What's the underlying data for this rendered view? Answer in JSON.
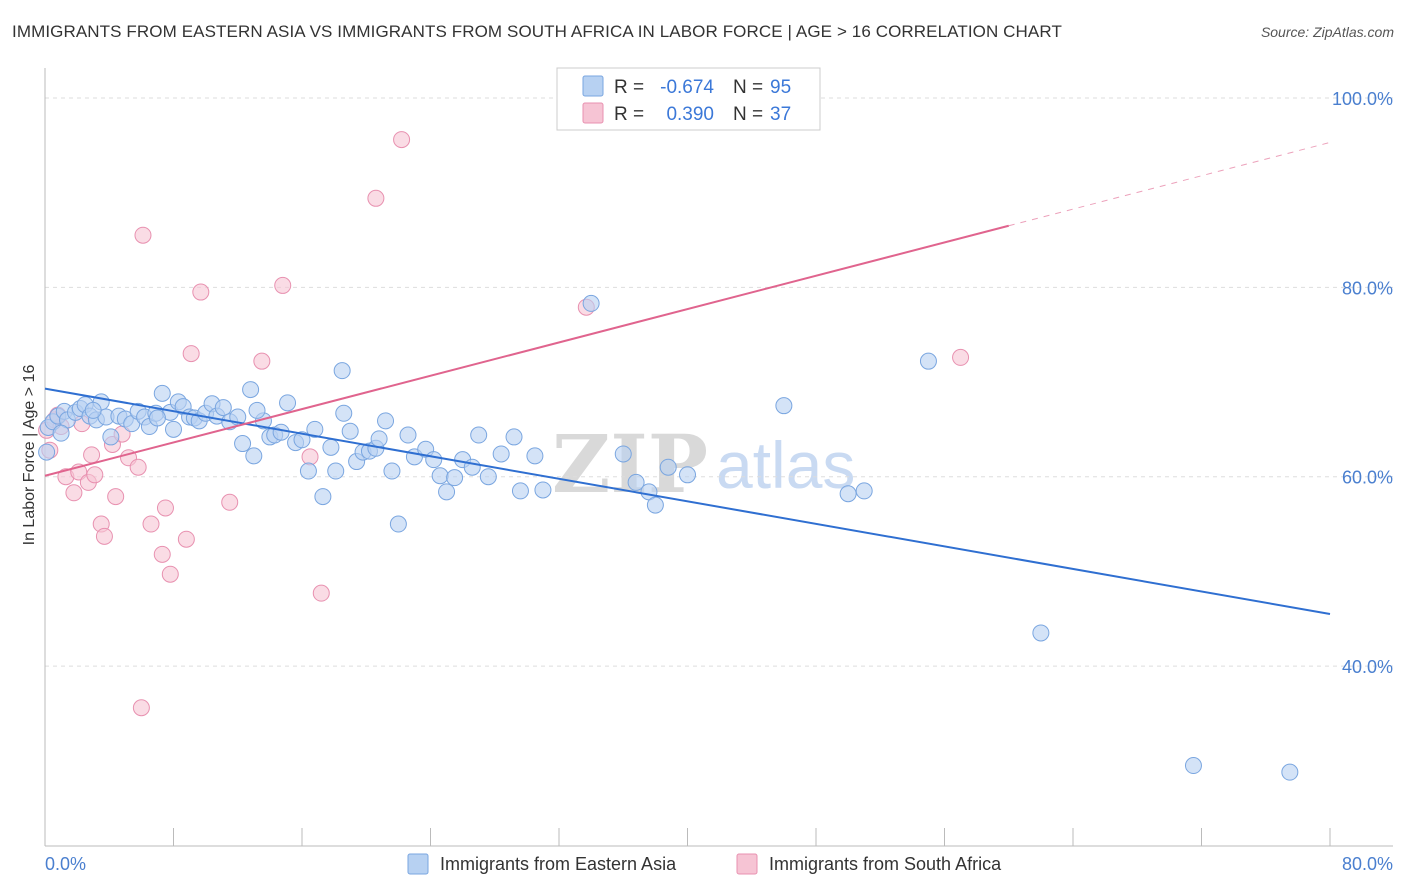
{
  "header": {
    "title": "IMMIGRANTS FROM EASTERN ASIA VS IMMIGRANTS FROM SOUTH AFRICA IN LABOR FORCE | AGE > 16 CORRELATION CHART",
    "source": "Source: ZipAtlas.com"
  },
  "watermark": {
    "zip": "ZIP",
    "atlas": "atlas"
  },
  "legend": {
    "row1": {
      "r_label": "R =",
      "r_value": "-0.674",
      "n_label": "N =",
      "n_value": "95"
    },
    "row2": {
      "r_label": "R =",
      "r_value": "0.390",
      "n_label": "N =",
      "n_value": "37"
    }
  },
  "bottom_legend": {
    "series1": "Immigrants from Eastern Asia",
    "series2": "Immigrants from South Africa"
  },
  "colors": {
    "series1_fill": "#b7d1f2",
    "series1_stroke": "#7aa6e0",
    "series1_line": "#2f6fd1",
    "series2_fill": "#f6c4d4",
    "series2_stroke": "#e891b0",
    "series2_line": "#e0648e",
    "grid": "#dddddd"
  },
  "chart_data": {
    "type": "scatter",
    "title": "IMMIGRANTS FROM EASTERN ASIA VS IMMIGRANTS FROM SOUTH AFRICA IN LABOR FORCE | AGE > 16 CORRELATION CHART",
    "xlabel": "",
    "ylabel": "In Labor Force | Age > 16",
    "xlim": [
      0,
      80
    ],
    "ylim": [
      21,
      102
    ],
    "x_tick_labels": [
      "0.0%",
      "80.0%"
    ],
    "y_ticks": [
      40,
      60,
      80,
      100
    ],
    "y_tick_labels": [
      "40.0%",
      "60.0%",
      "80.0%",
      "100.0%"
    ],
    "grid": "horizontal dashed",
    "legend_position": "top-center",
    "series": [
      {
        "name": "Immigrants from Eastern Asia",
        "r": -0.674,
        "n": 95,
        "trend": {
          "x": [
            0,
            80
          ],
          "y": [
            69.3,
            45.5
          ]
        },
        "points": [
          [
            0.1,
            62.6
          ],
          [
            0.2,
            65.2
          ],
          [
            0.5,
            65.8
          ],
          [
            0.8,
            66.4
          ],
          [
            1.2,
            66.9
          ],
          [
            1.4,
            66.0
          ],
          [
            1.9,
            66.8
          ],
          [
            2.2,
            67.2
          ],
          [
            2.5,
            67.6
          ],
          [
            2.8,
            66.4
          ],
          [
            3.2,
            66.0
          ],
          [
            3.5,
            67.9
          ],
          [
            3.8,
            66.3
          ],
          [
            4.1,
            64.2
          ],
          [
            4.6,
            66.4
          ],
          [
            5.0,
            66.1
          ],
          [
            5.4,
            65.6
          ],
          [
            5.8,
            66.9
          ],
          [
            6.2,
            66.3
          ],
          [
            6.5,
            65.3
          ],
          [
            6.9,
            66.7
          ],
          [
            7.3,
            68.8
          ],
          [
            7.8,
            66.8
          ],
          [
            8.0,
            65.0
          ],
          [
            8.3,
            67.9
          ],
          [
            8.6,
            67.4
          ],
          [
            9.0,
            66.3
          ],
          [
            9.3,
            66.2
          ],
          [
            9.6,
            65.9
          ],
          [
            10.0,
            66.7
          ],
          [
            10.4,
            67.7
          ],
          [
            10.7,
            66.4
          ],
          [
            11.1,
            67.3
          ],
          [
            11.5,
            65.8
          ],
          [
            12.0,
            66.3
          ],
          [
            12.3,
            63.5
          ],
          [
            12.8,
            69.2
          ],
          [
            13.0,
            62.2
          ],
          [
            13.6,
            65.9
          ],
          [
            14.0,
            64.2
          ],
          [
            14.3,
            64.4
          ],
          [
            14.7,
            64.7
          ],
          [
            15.1,
            67.8
          ],
          [
            15.6,
            63.6
          ],
          [
            16.0,
            63.9
          ],
          [
            16.4,
            60.6
          ],
          [
            16.8,
            65.0
          ],
          [
            17.3,
            57.9
          ],
          [
            17.8,
            63.1
          ],
          [
            18.1,
            60.6
          ],
          [
            18.6,
            66.7
          ],
          [
            19.0,
            64.8
          ],
          [
            19.4,
            61.6
          ],
          [
            19.8,
            62.6
          ],
          [
            20.2,
            62.7
          ],
          [
            20.6,
            63.0
          ],
          [
            21.2,
            65.9
          ],
          [
            21.6,
            60.6
          ],
          [
            22.0,
            55.0
          ],
          [
            22.6,
            64.4
          ],
          [
            23.0,
            62.1
          ],
          [
            23.7,
            62.9
          ],
          [
            24.2,
            61.8
          ],
          [
            24.6,
            60.1
          ],
          [
            25.0,
            58.4
          ],
          [
            25.5,
            59.9
          ],
          [
            26.0,
            61.8
          ],
          [
            26.6,
            61.0
          ],
          [
            27.0,
            64.4
          ],
          [
            27.6,
            60.0
          ],
          [
            28.4,
            62.4
          ],
          [
            29.2,
            64.2
          ],
          [
            29.6,
            58.5
          ],
          [
            30.5,
            62.2
          ],
          [
            31.0,
            58.6
          ],
          [
            36.0,
            62.4
          ],
          [
            36.8,
            59.4
          ],
          [
            37.6,
            58.4
          ],
          [
            38.0,
            57.0
          ],
          [
            38.8,
            61.0
          ],
          [
            46.0,
            67.5
          ],
          [
            50.0,
            58.2
          ],
          [
            51.0,
            58.5
          ],
          [
            55.0,
            72.2
          ],
          [
            62.0,
            43.5
          ],
          [
            71.5,
            29.5
          ],
          [
            77.5,
            28.8
          ],
          [
            34.0,
            78.3
          ],
          [
            18.5,
            71.2
          ],
          [
            20.8,
            64.0
          ],
          [
            3.0,
            67.0
          ],
          [
            7.0,
            66.2
          ],
          [
            13.2,
            67.0
          ],
          [
            40.0,
            60.2
          ],
          [
            1.0,
            64.6
          ]
        ]
      },
      {
        "name": "Immigrants from South Africa",
        "r": 0.39,
        "n": 37,
        "trend": {
          "x": [
            0,
            60
          ],
          "y": [
            60.1,
            86.5
          ]
        },
        "trend_dashed": {
          "x": [
            60,
            80
          ],
          "y": [
            86.5,
            95.3
          ]
        },
        "points": [
          [
            0.1,
            64.9
          ],
          [
            0.3,
            62.8
          ],
          [
            0.6,
            66.0
          ],
          [
            1.3,
            60.0
          ],
          [
            1.8,
            58.3
          ],
          [
            2.1,
            60.5
          ],
          [
            2.3,
            65.6
          ],
          [
            2.7,
            59.4
          ],
          [
            2.9,
            62.3
          ],
          [
            3.1,
            60.2
          ],
          [
            3.5,
            55.0
          ],
          [
            3.7,
            53.7
          ],
          [
            4.2,
            63.4
          ],
          [
            4.4,
            57.9
          ],
          [
            4.8,
            64.5
          ],
          [
            5.2,
            62.0
          ],
          [
            5.8,
            61.0
          ],
          [
            6.1,
            85.5
          ],
          [
            6.6,
            55.0
          ],
          [
            7.3,
            51.8
          ],
          [
            7.5,
            56.7
          ],
          [
            7.8,
            49.7
          ],
          [
            8.8,
            53.4
          ],
          [
            9.1,
            73.0
          ],
          [
            9.7,
            79.5
          ],
          [
            11.5,
            57.3
          ],
          [
            13.5,
            72.2
          ],
          [
            14.8,
            80.2
          ],
          [
            16.5,
            62.1
          ],
          [
            17.2,
            47.7
          ],
          [
            20.6,
            89.4
          ],
          [
            22.2,
            95.6
          ],
          [
            33.7,
            77.9
          ],
          [
            57.0,
            72.6
          ],
          [
            6.0,
            35.6
          ],
          [
            1.0,
            65.3
          ],
          [
            0.8,
            66.5
          ]
        ]
      }
    ]
  }
}
